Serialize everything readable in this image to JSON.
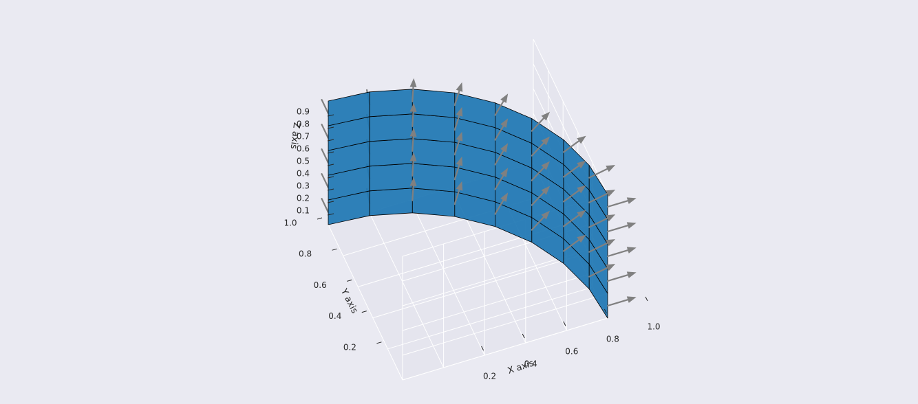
{
  "chart_data": {
    "type": "surface3d",
    "title": "",
    "surface": {
      "description": "cylindrical sheet x = cos(theta), y = sin(theta), z in [0, 1], drawn as a 9 x 5 mesh, with unit-normal quiver arrows",
      "theta_deg": [
        0,
        11.25,
        22.5,
        33.75,
        45,
        56.25,
        67.5,
        78.75,
        90
      ],
      "z": [
        0,
        0.2,
        0.4,
        0.6,
        0.8,
        1.0
      ],
      "color": "#1f77b4"
    },
    "quiver": {
      "color": "#808080",
      "points_z": [
        0.1,
        0.3,
        0.5,
        0.7,
        0.9
      ]
    },
    "axes": {
      "x": {
        "label": "X axis",
        "ticks": [
          "0.2",
          "0.4",
          "0.6",
          "0.8",
          "1.0"
        ],
        "tick_values": [
          0.2,
          0.4,
          0.6,
          0.8,
          1.0
        ],
        "range": [
          0,
          1
        ]
      },
      "y": {
        "label": "Y axis",
        "ticks": [
          "0.2",
          "0.4",
          "0.6",
          "0.8",
          "1.0"
        ],
        "tick_values": [
          0.2,
          0.4,
          0.6,
          0.8,
          1.0
        ],
        "range": [
          0,
          1
        ]
      },
      "z": {
        "label": "Z axis",
        "ticks": [
          "0.1",
          "0.2",
          "0.3",
          "0.4",
          "0.5",
          "0.6",
          "0.7",
          "0.8",
          "0.9"
        ],
        "tick_values": [
          0.1,
          0.2,
          0.3,
          0.4,
          0.5,
          0.6,
          0.7,
          0.8,
          0.9
        ],
        "range": [
          0,
          1
        ]
      }
    },
    "grid": true,
    "style": {
      "background": "#eaeaf2",
      "pane": "#e5e5ee",
      "gridline": "#ffffff"
    }
  }
}
